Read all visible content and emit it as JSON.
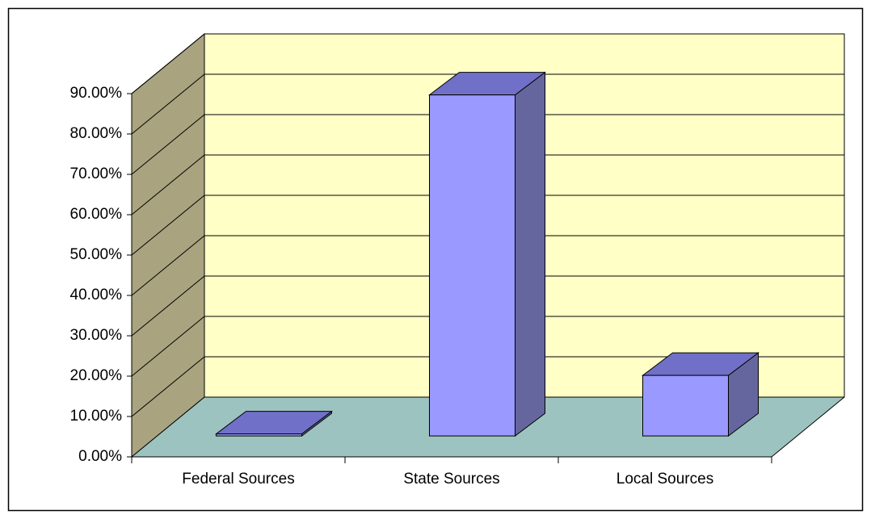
{
  "chart_data": {
    "type": "bar3d",
    "categories": [
      "Federal Sources",
      "State Sources",
      "Local Sources"
    ],
    "values": [
      0.5,
      84.5,
      15
    ],
    "color": "#9999ff",
    "ylim": [
      0,
      90
    ],
    "yticks": [
      {
        "value": 0,
        "label": "0.00%"
      },
      {
        "value": 10,
        "label": "10.00%"
      },
      {
        "value": 20,
        "label": "20.00%"
      },
      {
        "value": 30,
        "label": "30.00%"
      },
      {
        "value": 40,
        "label": "40.00%"
      },
      {
        "value": 50,
        "label": "50.00%"
      },
      {
        "value": 60,
        "label": "60.00%"
      },
      {
        "value": 70,
        "label": "70.00%"
      },
      {
        "value": 80,
        "label": "80.00%"
      },
      {
        "value": 90,
        "label": "90.00%"
      }
    ],
    "grid": true
  }
}
